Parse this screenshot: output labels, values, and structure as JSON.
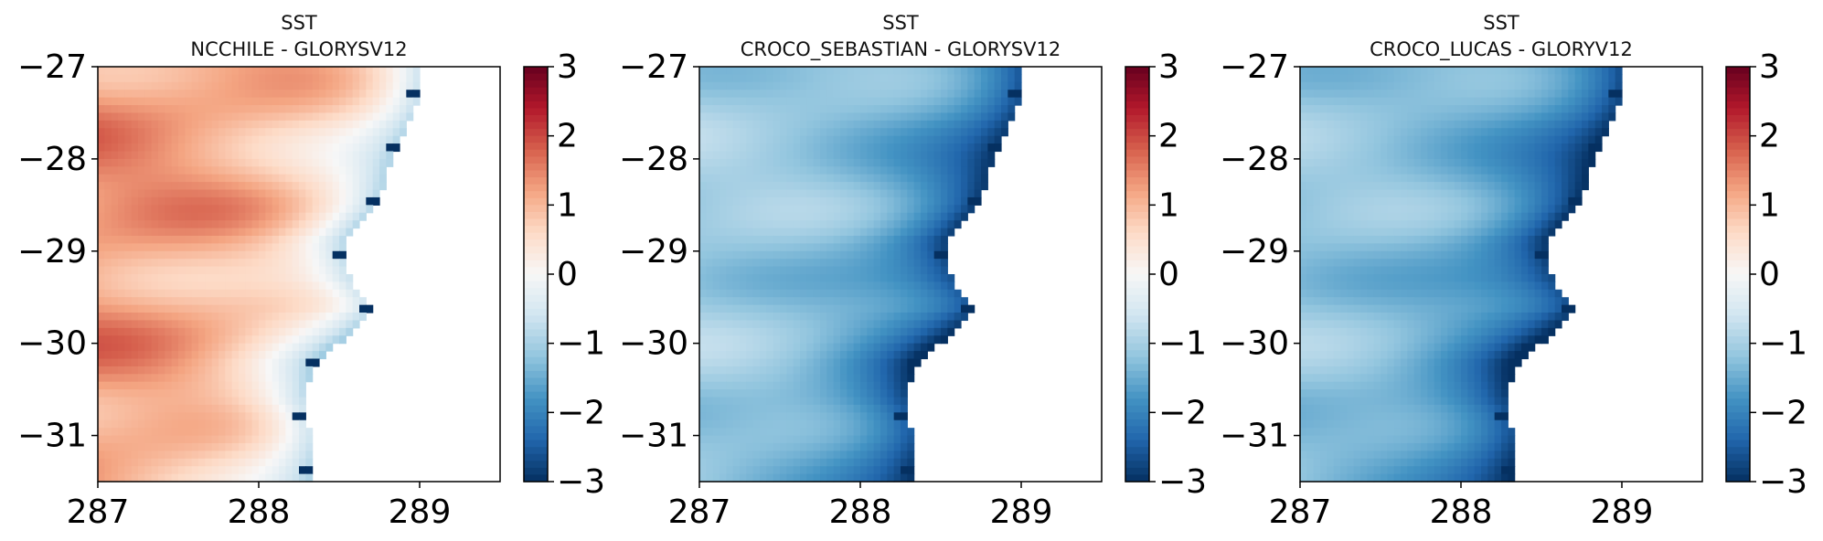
{
  "figure": {
    "colormap": "RdBu_r",
    "colors": {
      "neg": "#053061",
      "zero": "#f7f7f7",
      "pos": "#67001f",
      "axes": "#000000"
    },
    "panels_description": "three SST difference maps"
  },
  "chart_data": [
    {
      "type": "heatmap",
      "title": "SST",
      "subtitle": "NCCHILE - GLORYSV12",
      "xticks": [
        287,
        288,
        289
      ],
      "yticks": [
        -27,
        -28,
        -29,
        -30,
        -31
      ],
      "xlim": [
        287,
        289.5
      ],
      "ylim": [
        -31.5,
        -27
      ],
      "colorbar": {
        "min": -3,
        "max": 3,
        "ticks": [
          3,
          2,
          1,
          0,
          -1,
          -2,
          -3
        ],
        "colormap": "RdBu_r"
      },
      "pattern": "warm",
      "representative_values": {
        "offshore": 1.4,
        "nearshore": -0.8,
        "coastal_cells": -3
      }
    },
    {
      "type": "heatmap",
      "title": "SST",
      "subtitle": "CROCO_SEBASTIAN - GLORYSV12",
      "xticks": [
        287,
        288,
        289
      ],
      "yticks": [
        -27,
        -28,
        -29,
        -30,
        -31
      ],
      "xlim": [
        287,
        289.5
      ],
      "ylim": [
        -31.5,
        -27
      ],
      "colorbar": {
        "min": -3,
        "max": 3,
        "ticks": [
          3,
          2,
          1,
          0,
          -1,
          -2,
          -3
        ],
        "colormap": "RdBu_r"
      },
      "pattern": "cold",
      "representative_values": {
        "offshore": -1.0,
        "nearshore": -2.8,
        "coastal_cells": -3
      }
    },
    {
      "type": "heatmap",
      "title": "SST",
      "subtitle": "CROCO_LUCAS - GLORYV12",
      "xticks": [
        287,
        288,
        289
      ],
      "yticks": [
        -27,
        -28,
        -29,
        -30,
        -31
      ],
      "xlim": [
        287,
        289.5
      ],
      "ylim": [
        -31.5,
        -27
      ],
      "colorbar": {
        "min": -3,
        "max": 3,
        "ticks": [
          3,
          2,
          1,
          0,
          -1,
          -2,
          -3
        ],
        "colormap": "RdBu_r"
      },
      "pattern": "cold",
      "representative_values": {
        "offshore": -1.1,
        "nearshore": -2.9,
        "coastal_cells": -3
      }
    }
  ]
}
